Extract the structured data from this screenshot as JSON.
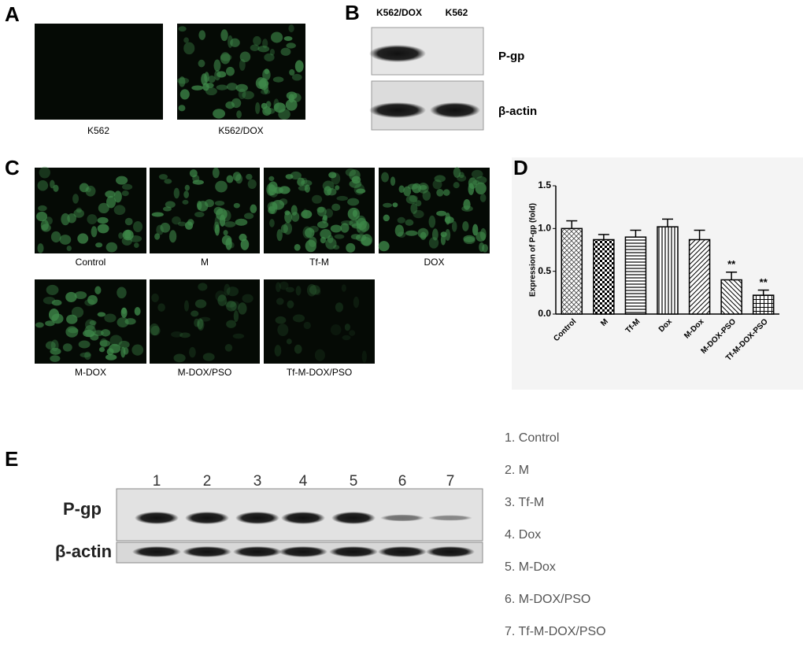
{
  "panels": {
    "A": {
      "label": "A",
      "images": [
        "K562",
        "K562/DOX"
      ]
    },
    "B": {
      "label": "B",
      "lanes": [
        "K562/DOX",
        "K562"
      ],
      "bands": [
        "P-gp",
        "β-actin"
      ]
    },
    "C": {
      "label": "C",
      "images": [
        "Control",
        "M",
        "Tf-M",
        "DOX",
        "M-DOX",
        "M-DOX/PSO",
        "Tf-M-DOX/PSO"
      ]
    },
    "E": {
      "label": "E",
      "lane_numbers": [
        1,
        2,
        3,
        4,
        5,
        6,
        7
      ],
      "bands": [
        "P-gp",
        "β-actin"
      ],
      "legend": [
        "1. Control",
        "2. M",
        "3. Tf-M",
        "4. Dox",
        "5. M-Dox",
        "6. M-DOX/PSO",
        "7. Tf-M-DOX/PSO"
      ]
    }
  },
  "chart_data": {
    "type": "bar",
    "label": "D",
    "ylabel": "Expression of P-gp (fold)",
    "categories": [
      "Control",
      "M",
      "Tf-M",
      "Dox",
      "M-Dox",
      "M-DOX-PSO",
      "Tf-M-DOX-PSO"
    ],
    "values": [
      1.0,
      0.87,
      0.9,
      1.02,
      0.87,
      0.4,
      0.22
    ],
    "errors": [
      0.09,
      0.06,
      0.08,
      0.09,
      0.11,
      0.09,
      0.06
    ],
    "significance": [
      null,
      null,
      null,
      null,
      null,
      "**",
      "**"
    ],
    "color": "#000000",
    "ylim": [
      0,
      1.5
    ],
    "yticks": [
      {
        "value": 0,
        "label": "0.0"
      },
      {
        "value": 0.5,
        "label": "0.5"
      },
      {
        "value": 1,
        "label": "1.0"
      },
      {
        "value": 1.5,
        "label": "1.5"
      }
    ]
  }
}
